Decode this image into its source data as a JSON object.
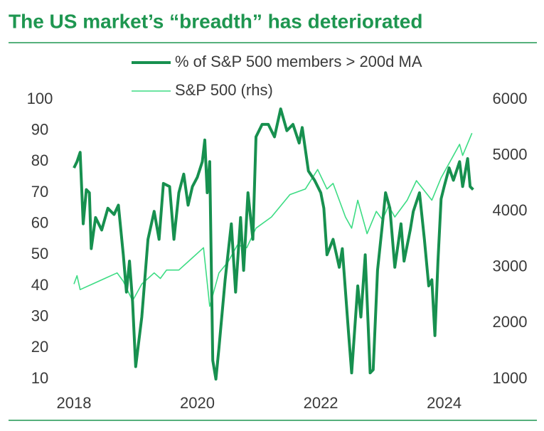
{
  "chart_data": {
    "type": "line",
    "title": "The US market’s “breadth” has deteriorated",
    "series": [
      {
        "name": "% of S&P 500 members > 200d MA",
        "color": "#17904f",
        "width": 4,
        "axis": "y",
        "x": [
          2018.0,
          2018.05,
          2018.1,
          2018.15,
          2018.2,
          2018.25,
          2018.28,
          2018.35,
          2018.45,
          2018.55,
          2018.65,
          2018.72,
          2018.8,
          2018.85,
          2018.9,
          2018.95,
          2019.0,
          2019.1,
          2019.2,
          2019.3,
          2019.38,
          2019.45,
          2019.55,
          2019.62,
          2019.7,
          2019.78,
          2019.85,
          2019.92,
          2020.0,
          2020.08,
          2020.12,
          2020.16,
          2020.2,
          2020.25,
          2020.3,
          2020.35,
          2020.45,
          2020.55,
          2020.62,
          2020.7,
          2020.75,
          2020.82,
          2020.9,
          2020.95,
          2021.05,
          2021.15,
          2021.25,
          2021.35,
          2021.45,
          2021.55,
          2021.65,
          2021.7,
          2021.8,
          2021.9,
          2022.0,
          2022.05,
          2022.1,
          2022.2,
          2022.3,
          2022.35,
          2022.45,
          2022.5,
          2022.6,
          2022.65,
          2022.72,
          2022.8,
          2022.85,
          2022.92,
          2023.0,
          2023.05,
          2023.12,
          2023.2,
          2023.3,
          2023.35,
          2023.45,
          2023.5,
          2023.6,
          2023.68,
          2023.75,
          2023.8,
          2023.85,
          2023.9,
          2023.95,
          2024.0,
          2024.08,
          2024.15,
          2024.25,
          2024.3,
          2024.38,
          2024.42,
          2024.47
        ],
        "values": [
          78,
          80,
          83,
          60,
          71,
          70,
          52,
          62,
          58,
          65,
          63,
          66,
          50,
          38,
          48,
          35,
          14,
          30,
          55,
          64,
          55,
          73,
          72,
          55,
          70,
          76,
          66,
          72,
          75,
          80,
          87,
          70,
          80,
          16,
          10,
          20,
          42,
          60,
          38,
          62,
          45,
          70,
          55,
          88,
          92,
          92,
          88,
          97,
          90,
          92,
          86,
          91,
          77,
          74,
          70,
          65,
          50,
          55,
          46,
          52,
          25,
          12,
          40,
          30,
          50,
          12,
          13,
          45,
          60,
          70,
          65,
          46,
          60,
          48,
          58,
          64,
          70,
          55,
          40,
          42,
          24,
          48,
          68,
          72,
          78,
          74,
          80,
          72,
          81,
          72,
          71
        ]
      },
      {
        "name": "S&P 500 (rhs)",
        "color": "#3ddc84",
        "width": 1.6,
        "axis": "y2",
        "x": [
          2018.0,
          2018.05,
          2018.1,
          2018.3,
          2018.5,
          2018.7,
          2018.8,
          2018.95,
          2019.1,
          2019.3,
          2019.4,
          2019.5,
          2019.7,
          2019.9,
          2020.1,
          2020.2,
          2020.35,
          2020.5,
          2020.65,
          2020.8,
          2020.95,
          2021.2,
          2021.5,
          2021.75,
          2021.95,
          2022.1,
          2022.2,
          2022.4,
          2022.5,
          2022.6,
          2022.75,
          2022.9,
          2023.0,
          2023.1,
          2023.2,
          2023.4,
          2023.55,
          2023.8,
          2023.95,
          2024.1,
          2024.25,
          2024.3,
          2024.45
        ],
        "values": [
          2700,
          2850,
          2600,
          2700,
          2800,
          2900,
          2750,
          2400,
          2700,
          2900,
          2800,
          2950,
          2950,
          3150,
          3350,
          2300,
          2900,
          3100,
          3400,
          3350,
          3700,
          3900,
          4300,
          4400,
          4750,
          4400,
          4500,
          3900,
          3700,
          4200,
          3600,
          4000,
          3850,
          4100,
          3900,
          4200,
          4550,
          4200,
          4600,
          4900,
          5200,
          5000,
          5400
        ]
      }
    ],
    "xlim": [
      2018,
      2024.5
    ],
    "xticks": [
      2018,
      2020,
      2022,
      2024
    ],
    "ylim": [
      10,
      100
    ],
    "yticks": [
      10,
      20,
      30,
      40,
      50,
      60,
      70,
      80,
      90,
      100
    ],
    "y2lim": [
      1000,
      6000
    ],
    "y2ticks": [
      1000,
      2000,
      3000,
      4000,
      5000,
      6000
    ],
    "grid": false
  }
}
